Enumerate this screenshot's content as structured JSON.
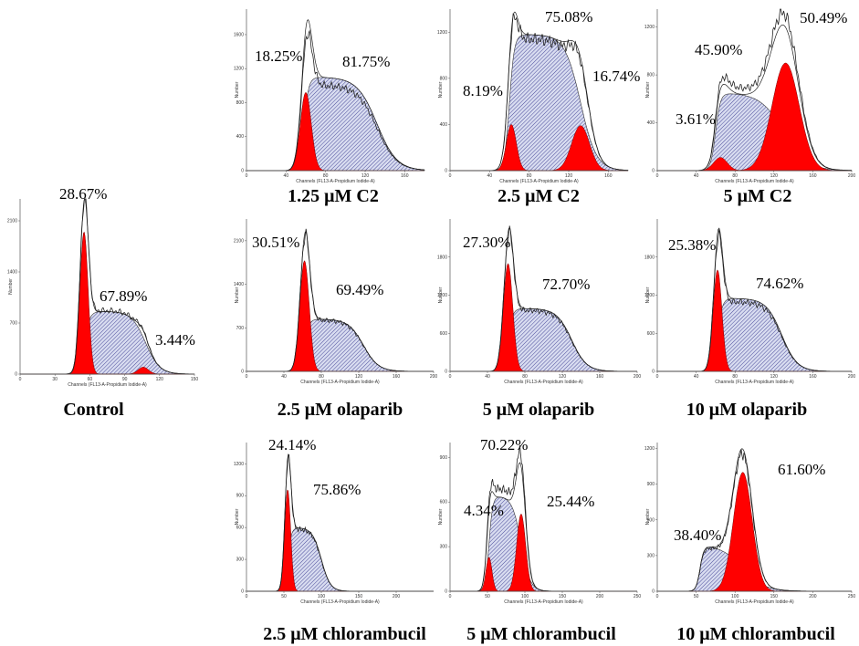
{
  "colors": {
    "g1": "#ff0000",
    "g1_stroke": "#7a0000",
    "s": "#d8dcf0",
    "s_hatch": "#3a3a90",
    "trace": "#222222"
  },
  "axis_labels": {
    "x": "Channels (FL13-A-Propidium Iodide-A)",
    "y": "Number"
  },
  "chart_data": [
    {
      "id": "control",
      "type": "area",
      "caption": "Control",
      "xlim": [
        0,
        150
      ],
      "ylim": [
        0,
        2400
      ],
      "xticks": [
        0,
        30,
        60,
        90,
        120,
        150
      ],
      "yticks": [
        0,
        700,
        1400,
        2100
      ],
      "g1": {
        "mean": 55,
        "sd": 3.5,
        "amp": 1950
      },
      "s": {
        "from": 55,
        "to": 108,
        "plateau": 860,
        "decay": 6
      },
      "g2": {
        "mean": 106,
        "sd": 4.5,
        "amp": 95
      },
      "trace_peak": 2430,
      "labels": [
        {
          "text": "28.67%"
        },
        {
          "text": "67.89%"
        },
        {
          "text": "3.44%"
        }
      ]
    },
    {
      "id": "c2_125",
      "type": "area",
      "caption": "1.25 μM C2",
      "xlim": [
        0,
        180
      ],
      "ylim": [
        0,
        1900
      ],
      "xticks": [
        0,
        40,
        80,
        120,
        160
      ],
      "yticks": [
        0,
        400,
        800,
        1200,
        1600
      ],
      "g1": {
        "mean": 60,
        "sd": 5.5,
        "amp": 920
      },
      "s": {
        "from": 58,
        "to": 132,
        "plateau": 1100,
        "decay": 10
      },
      "g2": null,
      "trace_peak": 1620,
      "labels": [
        {
          "text": "18.25%"
        },
        {
          "text": "81.75%"
        }
      ]
    },
    {
      "id": "c2_25",
      "type": "area",
      "caption": "2.5 μM C2",
      "xlim": [
        0,
        180
      ],
      "ylim": [
        0,
        1400
      ],
      "xticks": [
        0,
        40,
        80,
        120,
        160
      ],
      "yticks": [
        0,
        400,
        800,
        1200
      ],
      "g1": {
        "mean": 62,
        "sd": 5,
        "amp": 400
      },
      "s": {
        "from": 60,
        "to": 132,
        "plateau": 1180,
        "decay": 8
      },
      "g2": {
        "mean": 132,
        "sd": 9,
        "amp": 390
      },
      "trace_peak": 1330,
      "labels": [
        {
          "text": "75.08%"
        },
        {
          "text": "8.19%"
        },
        {
          "text": "16.74%"
        }
      ]
    },
    {
      "id": "c2_5",
      "type": "area",
      "caption": "5 μM C2",
      "xlim": [
        0,
        200
      ],
      "ylim": [
        0,
        1350
      ],
      "xticks": [
        0,
        40,
        80,
        120,
        160,
        200
      ],
      "yticks": [
        0,
        400,
        800,
        1200
      ],
      "g1": {
        "mean": 65,
        "sd": 7,
        "amp": 110
      },
      "s": {
        "from": 60,
        "to": 130,
        "plateau": 650,
        "decay": 12
      },
      "g2": {
        "mean": 132,
        "sd": 14,
        "amp": 900
      },
      "trace_peak": 1320,
      "labels": [
        {
          "text": "50.49%"
        },
        {
          "text": "45.90%"
        },
        {
          "text": "3.61%"
        }
      ]
    },
    {
      "id": "ola_25",
      "type": "area",
      "caption": "2.5 μM olaparib",
      "xlim": [
        0,
        200
      ],
      "ylim": [
        0,
        2450
      ],
      "xticks": [
        0,
        40,
        80,
        120,
        160,
        200
      ],
      "yticks": [
        0,
        700,
        1400,
        2100
      ],
      "g1": {
        "mean": 62,
        "sd": 5,
        "amp": 1780
      },
      "s": {
        "from": 62,
        "to": 125,
        "plateau": 840,
        "decay": 8
      },
      "g2": null,
      "trace_peak": 2200,
      "labels": [
        {
          "text": "30.51%"
        },
        {
          "text": "69.49%"
        }
      ]
    },
    {
      "id": "ola_5",
      "type": "area",
      "caption": "5 μM olaparib",
      "xlim": [
        0,
        200
      ],
      "ylim": [
        0,
        2400
      ],
      "xticks": [
        0,
        40,
        80,
        120,
        160,
        200
      ],
      "yticks": [
        0,
        600,
        1200,
        1800
      ],
      "g1": {
        "mean": 62,
        "sd": 5,
        "amp": 1700
      },
      "s": {
        "from": 62,
        "to": 130,
        "plateau": 990,
        "decay": 8
      },
      "g2": null,
      "trace_peak": 2200,
      "labels": [
        {
          "text": "27.30%"
        },
        {
          "text": "72.70%"
        }
      ]
    },
    {
      "id": "ola_10",
      "type": "area",
      "caption": "10 μM olaparib",
      "xlim": [
        0,
        200
      ],
      "ylim": [
        0,
        2400
      ],
      "xticks": [
        0,
        40,
        80,
        120,
        160,
        200
      ],
      "yticks": [
        0,
        600,
        1200,
        1800
      ],
      "g1": {
        "mean": 62,
        "sd": 4.5,
        "amp": 1600
      },
      "s": {
        "from": 62,
        "to": 128,
        "plateau": 1150,
        "decay": 8
      },
      "g2": null,
      "trace_peak": 2150,
      "labels": [
        {
          "text": "25.38%"
        },
        {
          "text": "74.62%"
        }
      ]
    },
    {
      "id": "chl_25",
      "type": "area",
      "caption": "2.5 μM chlorambucil",
      "xlim": [
        0,
        250
      ],
      "ylim": [
        0,
        1400
      ],
      "xticks": [
        0,
        50,
        100,
        150,
        200
      ],
      "yticks": [
        0,
        300,
        600,
        900,
        1200
      ],
      "g1": {
        "mean": 55,
        "sd": 4,
        "amp": 960
      },
      "s": {
        "from": 55,
        "to": 100,
        "plateau": 600,
        "decay": 6
      },
      "g2": null,
      "trace_peak": 1260,
      "labels": [
        {
          "text": "24.14%"
        },
        {
          "text": "75.86%"
        }
      ]
    },
    {
      "id": "chl_5",
      "type": "area",
      "caption": "5 μM chlorambucil",
      "xlim": [
        0,
        250
      ],
      "ylim": [
        0,
        1000
      ],
      "xticks": [
        0,
        50,
        100,
        150,
        200,
        250
      ],
      "yticks": [
        0,
        300,
        600,
        900
      ],
      "g1": {
        "mean": 52,
        "sd": 4,
        "amp": 230
      },
      "s": {
        "from": 52,
        "to": 95,
        "plateau": 640,
        "decay": 6
      },
      "g2": {
        "mean": 95,
        "sd": 6,
        "amp": 520
      },
      "trace_peak": 940,
      "labels": [
        {
          "text": "70.22%"
        },
        {
          "text": "4.34%"
        },
        {
          "text": "25.44%"
        }
      ]
    },
    {
      "id": "chl_10",
      "type": "area",
      "caption": "10 μM chlorambucil",
      "xlim": [
        0,
        250
      ],
      "ylim": [
        0,
        1250
      ],
      "xticks": [
        0,
        50,
        100,
        150,
        200,
        250
      ],
      "yticks": [
        0,
        300,
        600,
        900,
        1200
      ],
      "g1": null,
      "s": {
        "from": 55,
        "to": 110,
        "plateau": 390,
        "decay": 14
      },
      "g2": {
        "mean": 110,
        "sd": 12,
        "amp": 1000
      },
      "trace_peak": 1160,
      "labels": [
        {
          "text": "38.40%"
        },
        {
          "text": "61.60%"
        }
      ]
    }
  ]
}
